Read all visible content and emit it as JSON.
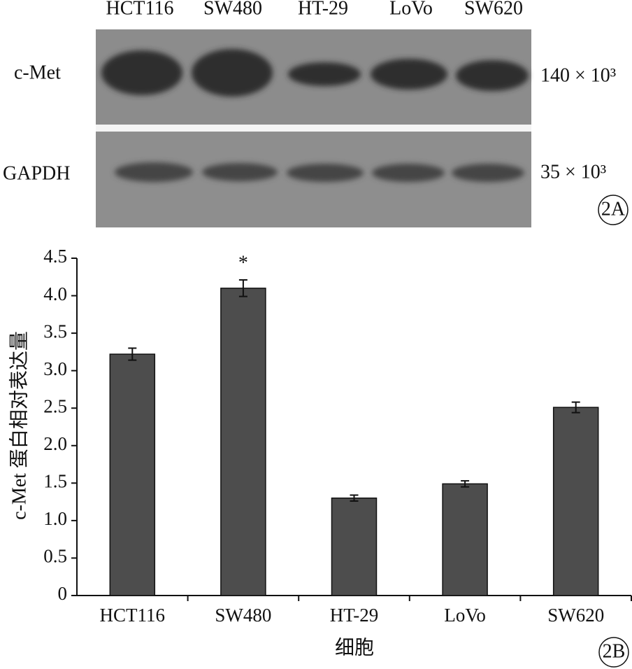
{
  "blot": {
    "lanes": [
      "HCT116",
      "SW480",
      "HT-29",
      "LoVo",
      "SW620"
    ],
    "rows": [
      {
        "label": "c-Met",
        "size": "140 × 10³"
      },
      {
        "label": "GAPDH",
        "size": "35 × 10³"
      }
    ],
    "panel_label": "2A"
  },
  "chart_data": {
    "type": "bar",
    "panel_label": "2B",
    "categories": [
      "HCT116",
      "SW480",
      "HT-29",
      "LoVo",
      "SW620"
    ],
    "values": [
      3.22,
      4.1,
      1.3,
      1.49,
      2.51
    ],
    "errors": [
      0.08,
      0.11,
      0.04,
      0.04,
      0.07
    ],
    "color": "#4d4d4d",
    "ylim": [
      0,
      4.5
    ],
    "yticks": [
      0,
      0.5,
      {
        "value": 1,
        "label": "1.0"
      },
      1.5,
      {
        "value": 2,
        "label": "2.0"
      },
      2.5,
      {
        "value": 3,
        "label": "3.0"
      },
      3.5,
      {
        "value": 4,
        "label": "4.0"
      },
      4.5
    ],
    "x_label": "细胞",
    "y_label": "c-Met 蛋白相对表达量",
    "annotations": [
      {
        "text": "*",
        "category": "SW480"
      }
    ]
  }
}
